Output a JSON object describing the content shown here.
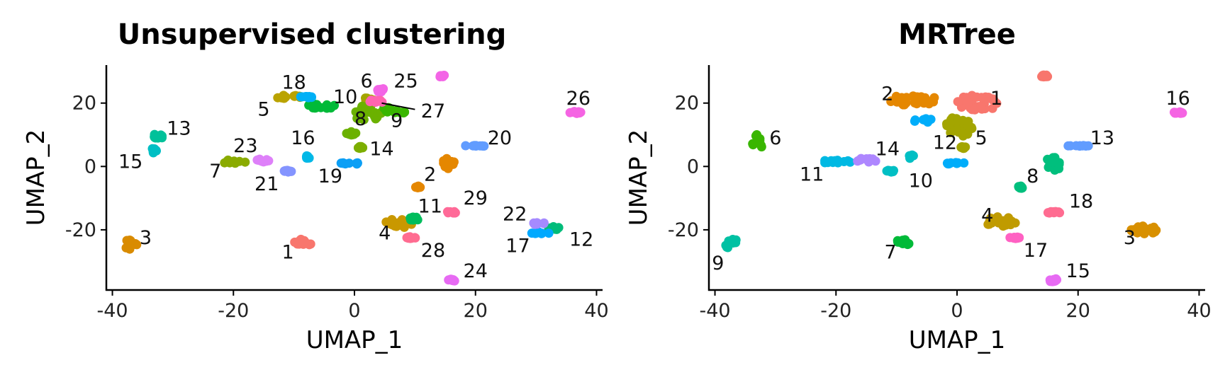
{
  "chart_data": [
    {
      "type": "scatter",
      "title": "Unsupervised clustering",
      "xlabel": "UMAP_1",
      "ylabel": "UMAP_2",
      "xlim": [
        -41,
        41
      ],
      "ylim": [
        -39,
        32
      ],
      "xticks": [
        -40,
        -20,
        0,
        20,
        40
      ],
      "yticks": [
        -20,
        0,
        20
      ],
      "xtick_labels": [
        "-40",
        "-20",
        "0",
        "20",
        "40"
      ],
      "ytick_labels": [
        "-20",
        "0",
        "20"
      ],
      "legend": "none",
      "clusters": [
        {
          "label": "1",
          "color": "#F8766D",
          "blobs": [
            {
              "x": -8.5,
              "y": -24,
              "rx": 2.2,
              "ry": 2
            }
          ],
          "lx": -11,
          "ly": -27
        },
        {
          "label": "2",
          "color": "#E58700",
          "blobs": [
            {
              "x": 15.5,
              "y": 1,
              "rx": 1.5,
              "ry": 3
            },
            {
              "x": 10.5,
              "y": -6.5,
              "rx": 0.9,
              "ry": 1.3
            }
          ],
          "lx": 12.5,
          "ly": -2.5
        },
        {
          "label": "3",
          "color": "#D98B00",
          "blobs": [
            {
              "x": -37,
              "y": -24.5,
              "rx": 1.6,
              "ry": 2.5
            }
          ],
          "lx": -34.5,
          "ly": -22.5
        },
        {
          "label": "4",
          "color": "#C99800",
          "blobs": [
            {
              "x": 7,
              "y": -18,
              "rx": 3,
              "ry": 2.3
            }
          ],
          "lx": 5,
          "ly": -21
        },
        {
          "label": "5",
          "color": "#BAA300",
          "blobs": [
            {
              "x": -11,
              "y": 22,
              "rx": 3,
              "ry": 1.5
            }
          ],
          "lx": -15,
          "ly": 18
        },
        {
          "label": "6",
          "color": "#A3A500",
          "blobs": [
            {
              "x": 2,
              "y": 21,
              "rx": 1.8,
              "ry": 1.5
            }
          ],
          "lx": 2,
          "ly": 27
        },
        {
          "label": "7",
          "color": "#8AAB00",
          "blobs": [
            {
              "x": -20,
              "y": 1.5,
              "rx": 2.5,
              "ry": 1.5
            }
          ],
          "lx": -23,
          "ly": -1.5
        },
        {
          "label": "8",
          "color": "#6BB100",
          "blobs": [
            {
              "x": 2,
              "y": 17,
              "rx": 3,
              "ry": 3.5
            },
            {
              "x": -0.5,
              "y": 10.5,
              "rx": 1.3,
              "ry": 1.6
            }
          ],
          "lx": 1,
          "ly": 15
        },
        {
          "label": "9",
          "color": "#39B600",
          "blobs": [
            {
              "x": 6,
              "y": 17.5,
              "rx": 3,
              "ry": 2
            }
          ],
          "lx": 7,
          "ly": 14.5
        },
        {
          "label": "10",
          "color": "#00BA38",
          "blobs": [
            {
              "x": -5.5,
              "y": 19,
              "rx": 2.8,
              "ry": 2
            }
          ],
          "lx": -1.5,
          "ly": 22
        },
        {
          "label": "11",
          "color": "#00BD5C",
          "blobs": [
            {
              "x": 10,
              "y": -16.5,
              "rx": 1.5,
              "ry": 1.5
            }
          ],
          "lx": 12.5,
          "ly": -12.5
        },
        {
          "label": "12",
          "color": "#00BC7A",
          "blobs": [
            {
              "x": 33,
              "y": -19.5,
              "rx": 1.4,
              "ry": 1.5
            }
          ],
          "lx": 37.5,
          "ly": -23
        },
        {
          "label": "13",
          "color": "#00C19A",
          "blobs": [
            {
              "x": -32.5,
              "y": 9.5,
              "rx": 1.3,
              "ry": 1.8
            }
          ],
          "lx": -29,
          "ly": 12
        },
        {
          "label": "14",
          "color": "#7CAE00",
          "blobs": [
            {
              "x": 1,
              "y": 6,
              "rx": 0.9,
              "ry": 1.2
            }
          ],
          "lx": 4.5,
          "ly": 5.5
        },
        {
          "label": "15",
          "color": "#00BFC4",
          "blobs": [
            {
              "x": -33,
              "y": 5,
              "rx": 1,
              "ry": 1.8
            }
          ],
          "lx": -37,
          "ly": 1.5
        },
        {
          "label": "16",
          "color": "#00B8E7",
          "blobs": [
            {
              "x": -7.5,
              "y": 3,
              "rx": 1,
              "ry": 1.5
            }
          ],
          "lx": -8.5,
          "ly": 9
        },
        {
          "label": "17",
          "color": "#00A9FF",
          "blobs": [
            {
              "x": 31,
              "y": -21,
              "rx": 2.2,
              "ry": 1.2
            }
          ],
          "lx": 27,
          "ly": -25
        },
        {
          "label": "18",
          "color": "#00B0F6",
          "blobs": [
            {
              "x": -8,
              "y": 22,
              "rx": 2,
              "ry": 1.2
            }
          ],
          "lx": -10,
          "ly": 26.5
        },
        {
          "label": "19",
          "color": "#0C9FF5",
          "blobs": [
            {
              "x": -0.5,
              "y": 1,
              "rx": 2.2,
              "ry": 1.2
            }
          ],
          "lx": -4,
          "ly": -3
        },
        {
          "label": "20",
          "color": "#619CFF",
          "blobs": [
            {
              "x": 20,
              "y": 6.5,
              "rx": 2.5,
              "ry": 1
            }
          ],
          "lx": 24,
          "ly": 9
        },
        {
          "label": "21",
          "color": "#8494FF",
          "blobs": [
            {
              "x": -11,
              "y": -1.5,
              "rx": 1.2,
              "ry": 1.2
            }
          ],
          "lx": -14.5,
          "ly": -5.5
        },
        {
          "label": "22",
          "color": "#A58AFF",
          "blobs": [
            {
              "x": 30.5,
              "y": -18,
              "rx": 1.5,
              "ry": 1.3
            }
          ],
          "lx": 26.5,
          "ly": -15
        },
        {
          "label": "23",
          "color": "#DE80F9",
          "blobs": [
            {
              "x": -15.5,
              "y": 2,
              "rx": 2,
              "ry": 1.5
            }
          ],
          "lx": -18,
          "ly": 6.5
        },
        {
          "label": "24",
          "color": "#E76BF3",
          "blobs": [
            {
              "x": 16,
              "y": -36,
              "rx": 1.2,
              "ry": 1.5
            }
          ],
          "lx": 20,
          "ly": -33
        },
        {
          "label": "25",
          "color": "#F365E6",
          "blobs": [
            {
              "x": 4.5,
              "y": 24,
              "rx": 1.2,
              "ry": 1.5
            },
            {
              "x": 14.5,
              "y": 28.5,
              "rx": 1,
              "ry": 1.3
            }
          ],
          "lx": 8.5,
          "ly": 27
        },
        {
          "label": "26",
          "color": "#F564E3",
          "blobs": [
            {
              "x": 36.5,
              "y": 17,
              "rx": 1.5,
              "ry": 1.3
            }
          ],
          "lx": 37,
          "ly": 21.5
        },
        {
          "label": "27",
          "color": "#FF64B0",
          "blobs": [
            {
              "x": 3.5,
              "y": 20.5,
              "rx": 1.8,
              "ry": 1.8
            }
          ],
          "lx": 13,
          "ly": 17.5,
          "leader": [
            4.5,
            20,
            10,
            18
          ]
        },
        {
          "label": "28",
          "color": "#FF6C91",
          "blobs": [
            {
              "x": 9.5,
              "y": -22.5,
              "rx": 1.4,
              "ry": 1.2
            }
          ],
          "lx": 13,
          "ly": -26.5
        },
        {
          "label": "29",
          "color": "#FF6A98",
          "blobs": [
            {
              "x": 16,
              "y": -14.5,
              "rx": 1.5,
              "ry": 1.2
            }
          ],
          "lx": 20,
          "ly": -10
        }
      ]
    },
    {
      "type": "scatter",
      "title": "MRTree",
      "xlabel": "UMAP_1",
      "ylabel": "UMAP_2",
      "xlim": [
        -41,
        41
      ],
      "ylim": [
        -39,
        32
      ],
      "xticks": [
        -40,
        -20,
        0,
        20,
        40
      ],
      "yticks": [
        -20,
        0,
        20
      ],
      "xtick_labels": [
        "-40",
        "-20",
        "0",
        "20",
        "40"
      ],
      "ytick_labels": [
        "-20",
        "0",
        "20"
      ],
      "legend": "none",
      "clusters": [
        {
          "label": "1",
          "color": "#F8766D",
          "blobs": [
            {
              "x": 3.5,
              "y": 20,
              "rx": 4,
              "ry": 3.5
            },
            {
              "x": 14.5,
              "y": 28.5,
              "rx": 1,
              "ry": 1.3
            }
          ],
          "lx": 6.5,
          "ly": 21.5
        },
        {
          "label": "2",
          "color": "#E58700",
          "blobs": [
            {
              "x": -7.5,
              "y": 21,
              "rx": 5,
              "ry": 2.5
            }
          ],
          "lx": -11.5,
          "ly": 23
        },
        {
          "label": "3",
          "color": "#D89000",
          "blobs": [
            {
              "x": 31,
              "y": -20,
              "rx": 2.8,
              "ry": 2.2
            }
          ],
          "lx": 28.5,
          "ly": -22.5
        },
        {
          "label": "4",
          "color": "#C09B00",
          "blobs": [
            {
              "x": 7,
              "y": -17.5,
              "rx": 3.2,
              "ry": 2.5
            }
          ],
          "lx": 5,
          "ly": -15.5
        },
        {
          "label": "5",
          "color": "#A3A500",
          "blobs": [
            {
              "x": 0.5,
              "y": 13,
              "rx": 2.8,
              "ry": 4.5
            },
            {
              "x": 1,
              "y": 6,
              "rx": 0.9,
              "ry": 1.2
            }
          ],
          "lx": 4,
          "ly": 9
        },
        {
          "label": "6",
          "color": "#39B600",
          "blobs": [
            {
              "x": -33,
              "y": 7.5,
              "rx": 1.3,
              "ry": 3.5
            }
          ],
          "lx": -30,
          "ly": 9
        },
        {
          "label": "7",
          "color": "#00BA38",
          "blobs": [
            {
              "x": -9,
              "y": -24,
              "rx": 2.2,
              "ry": 2
            }
          ],
          "lx": -11,
          "ly": -27
        },
        {
          "label": "8",
          "color": "#00BF7D",
          "blobs": [
            {
              "x": 16,
              "y": 1,
              "rx": 1.8,
              "ry": 3.5
            },
            {
              "x": 10.5,
              "y": -6.5,
              "rx": 0.9,
              "ry": 1.3
            }
          ],
          "lx": 12.5,
          "ly": -3
        },
        {
          "label": "9",
          "color": "#00C1A3",
          "blobs": [
            {
              "x": -37,
              "y": -24.5,
              "rx": 1.8,
              "ry": 2.5
            }
          ],
          "lx": -39.5,
          "ly": -30.5
        },
        {
          "label": "10",
          "color": "#00BFC4",
          "blobs": [
            {
              "x": -11,
              "y": -1.5,
              "rx": 1.2,
              "ry": 1.2
            },
            {
              "x": -7.5,
              "y": 3,
              "rx": 1,
              "ry": 1.5
            }
          ],
          "lx": -6,
          "ly": -4.5
        },
        {
          "label": "11",
          "color": "#00B9E3",
          "blobs": [
            {
              "x": -20,
              "y": 1.5,
              "rx": 3,
              "ry": 1.5
            }
          ],
          "lx": -24,
          "ly": -2.5
        },
        {
          "label": "12",
          "color": "#00ADFA",
          "blobs": [
            {
              "x": -5.5,
              "y": 14.5,
              "rx": 2.2,
              "ry": 1.5
            },
            {
              "x": -0.5,
              "y": 1,
              "rx": 2.2,
              "ry": 1.2
            }
          ],
          "lx": -2,
          "ly": 7.5
        },
        {
          "label": "13",
          "color": "#619CFF",
          "blobs": [
            {
              "x": 20,
              "y": 6.5,
              "rx": 2.5,
              "ry": 1
            }
          ],
          "lx": 24,
          "ly": 9
        },
        {
          "label": "14",
          "color": "#AE87FF",
          "blobs": [
            {
              "x": -15,
              "y": 2,
              "rx": 2.3,
              "ry": 1.5
            }
          ],
          "lx": -11.5,
          "ly": 5.5
        },
        {
          "label": "15",
          "color": "#E76BF3",
          "blobs": [
            {
              "x": 16,
              "y": -36,
              "rx": 1.2,
              "ry": 1.5
            }
          ],
          "lx": 20,
          "ly": -33
        },
        {
          "label": "16",
          "color": "#F564E3",
          "blobs": [
            {
              "x": 36.5,
              "y": 17,
              "rx": 1.5,
              "ry": 1.3
            }
          ],
          "lx": 36.5,
          "ly": 21.5
        },
        {
          "label": "17",
          "color": "#FF61C3",
          "blobs": [
            {
              "x": 9.5,
              "y": -22.5,
              "rx": 1.4,
              "ry": 1.2
            }
          ],
          "lx": 13,
          "ly": -26.5
        },
        {
          "label": "18",
          "color": "#FF6C91",
          "blobs": [
            {
              "x": 16,
              "y": -14.5,
              "rx": 1.5,
              "ry": 1.2
            }
          ],
          "lx": 20.5,
          "ly": -11
        }
      ]
    }
  ]
}
